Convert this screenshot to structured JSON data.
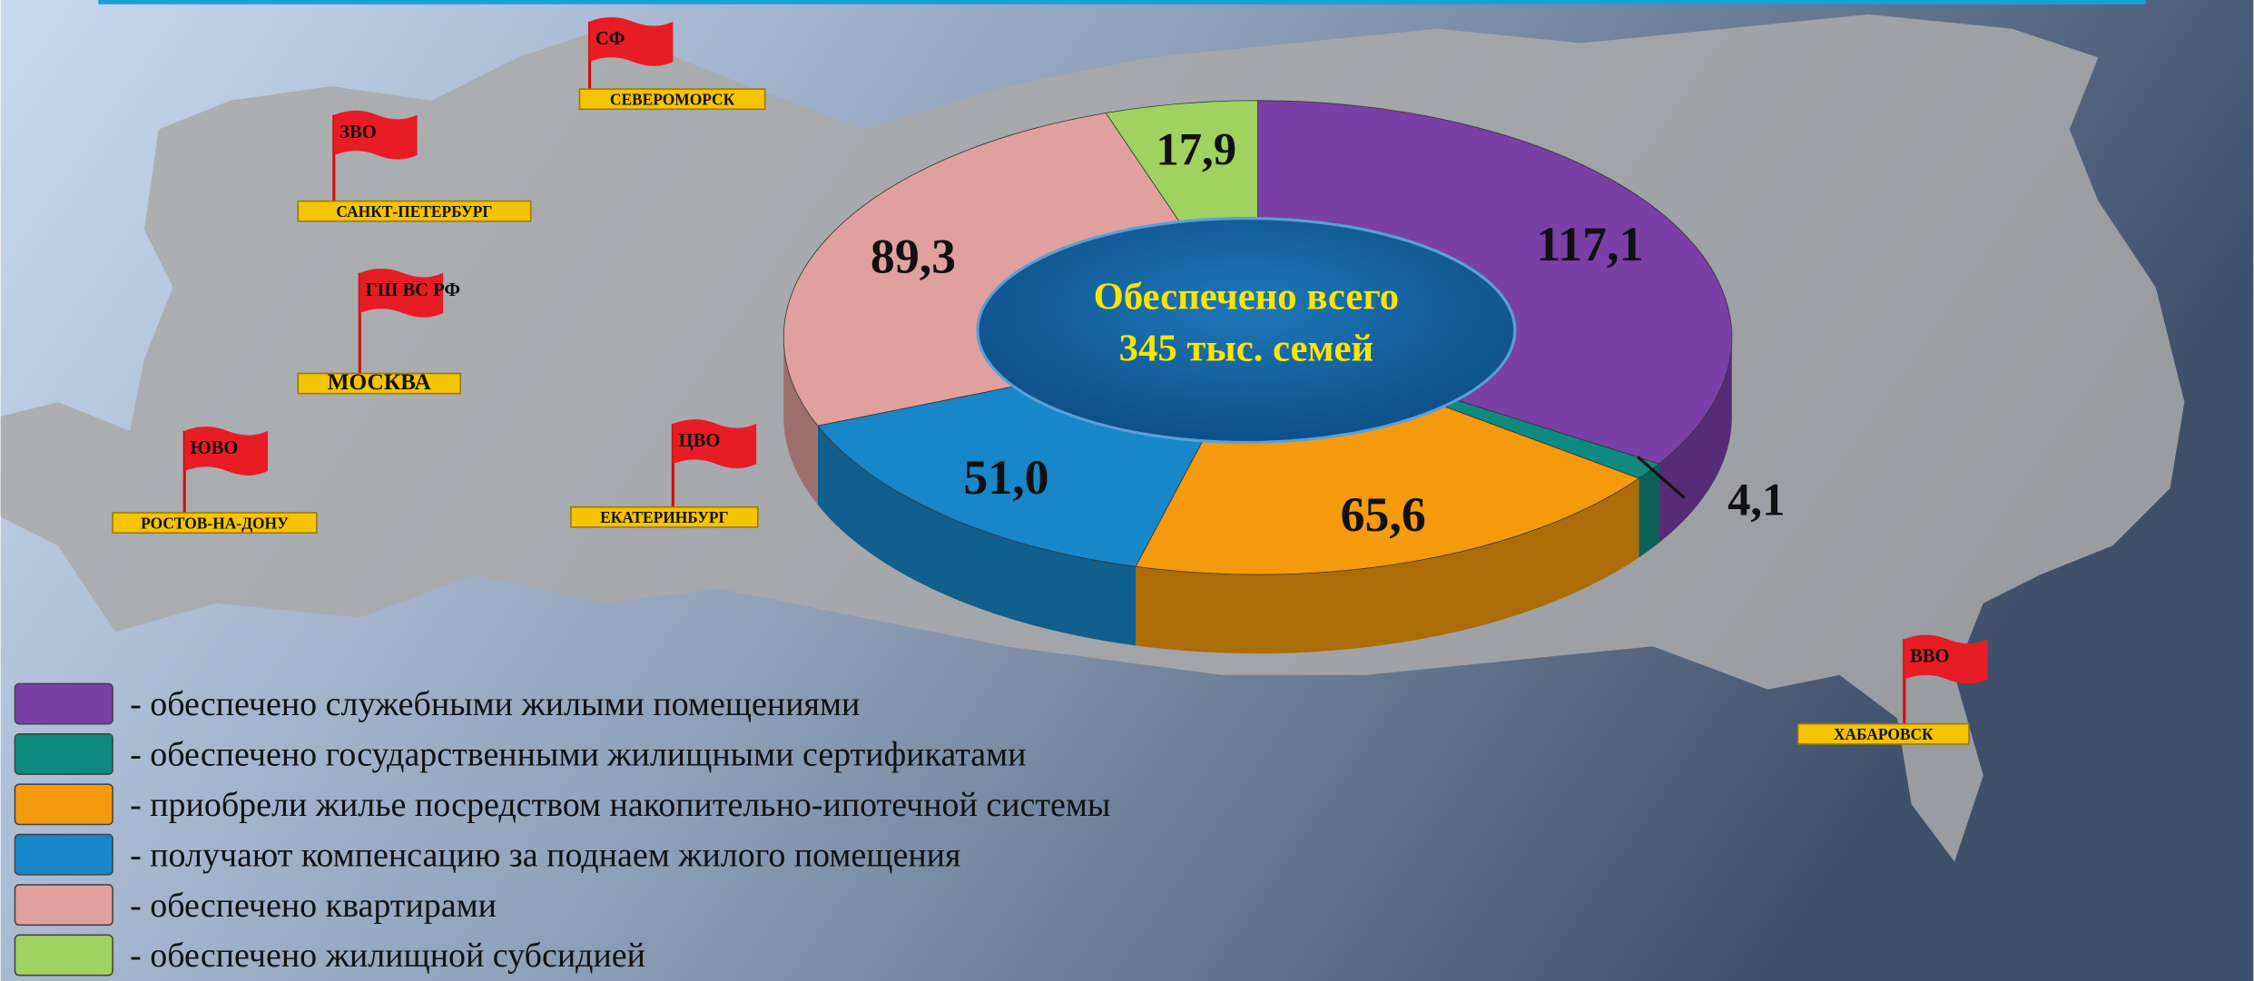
{
  "chart_data": {
    "type": "pie",
    "center_text": [
      "Обеспечено всего",
      "345 тыс. семей"
    ],
    "categories": [
      "- обеспечено служебными жилыми помещениями",
      "- обеспечено государственными жилищными сертификатами",
      "- приобрели жилье посредством накопительно-ипотечной системы",
      "- получают компенсацию за поднаем жилого помещения",
      "- обеспечено квартирами",
      "- обеспечено жилищной субсидией"
    ],
    "values": [
      117.1,
      4.1,
      65.6,
      51.0,
      89.3,
      17.9
    ],
    "value_labels": [
      "117,1",
      "4,1",
      "65,6",
      "51,0",
      "89,3",
      "17,9"
    ],
    "colors": [
      "#7b3fa8",
      "#0f8a7e",
      "#f59a0c",
      "#1787c9",
      "#e0a09e",
      "#9fd25e"
    ],
    "map_labels": [
      {
        "district": "СФ",
        "city": "СЕВЕРОМОРСК"
      },
      {
        "district": "ЗВО",
        "city": "САНКТ-ПЕТЕРБУРГ"
      },
      {
        "district": "ГШ ВС РФ",
        "city": "МОСКВА"
      },
      {
        "district": "ЮВО",
        "city": "РОСТОВ-НА-ДОНУ"
      },
      {
        "district": "ЦВО",
        "city": "ЕКАТЕРИНБУРГ"
      },
      {
        "district": "ВВО",
        "city": "ХАБАРОВСК"
      }
    ]
  }
}
